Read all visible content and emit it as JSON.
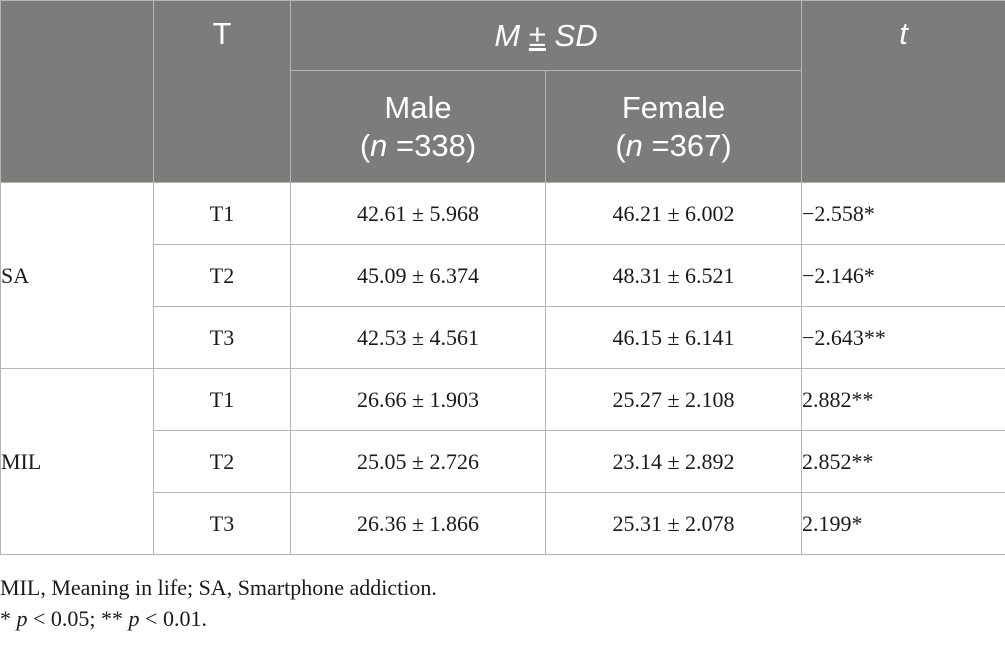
{
  "header": {
    "t_label": "T",
    "msd_m": "M",
    "msd_pm": "±",
    "msd_sd": "SD",
    "tstat": "t",
    "male_label": "Male",
    "male_n_prefix": "(",
    "male_n_var": "n",
    "male_n_value": " =338)",
    "female_label": "Female",
    "female_n_prefix": "(",
    "female_n_var": "n",
    "female_n_value": " =367)"
  },
  "groups": [
    {
      "label": "SA",
      "rows": [
        {
          "time": "T1",
          "male": "42.61 ± 5.968",
          "female": "46.21 ± 6.002",
          "t": "−2.558*"
        },
        {
          "time": "T2",
          "male": "45.09 ± 6.374",
          "female": "48.31 ± 6.521",
          "t": "−2.146*"
        },
        {
          "time": "T3",
          "male": "42.53 ± 4.561",
          "female": "46.15 ± 6.141",
          "t": "−2.643**"
        }
      ]
    },
    {
      "label": "MIL",
      "rows": [
        {
          "time": "T1",
          "male": "26.66 ± 1.903",
          "female": "25.27 ± 2.108",
          "t": "2.882**"
        },
        {
          "time": "T2",
          "male": "25.05 ± 2.726",
          "female": "23.14 ± 2.892",
          "t": "2.852**"
        },
        {
          "time": "T3",
          "male": "26.36 ± 1.866",
          "female": "25.31 ± 2.078",
          "t": "2.199*"
        }
      ]
    }
  ],
  "notes": {
    "abbrev": "MIL, Meaning in life; SA, Smartphone addiction.",
    "sig_star1": "* ",
    "sig_p1": "p",
    "sig_val1": " < 0.05; ** ",
    "sig_p2": "p",
    "sig_val2": " < 0.01."
  }
}
